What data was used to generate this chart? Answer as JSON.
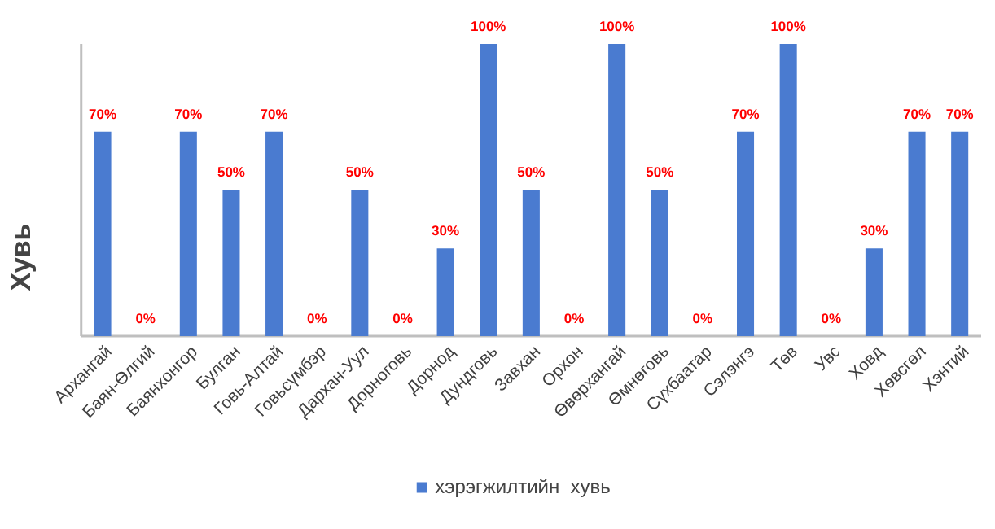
{
  "chart_data": {
    "type": "bar",
    "ylabel": "Хувь",
    "categories": [
      "Архангай",
      "Баян-Өлгий",
      "Баянхонгор",
      "Булган",
      "Говь-Алтай",
      "Говьсүмбэр",
      "Дархан-Уул",
      "Дорноговь",
      "Дорнод",
      "Дундговь",
      "Завхан",
      "Орхон",
      "Өвөрхангай",
      "Өмнөговь",
      "Сүхбаатар",
      "Сэлэнгэ",
      "Төв",
      "Увс",
      "Ховд",
      "Хөвсгөл",
      "Хэнтий"
    ],
    "series": [
      {
        "name": "хэрэгжилтийн  хувь",
        "color": "#4a7bd0",
        "values": [
          70,
          0,
          70,
          50,
          70,
          0,
          50,
          0,
          30,
          100,
          50,
          0,
          100,
          50,
          0,
          70,
          100,
          0,
          30,
          70,
          70
        ],
        "value_labels": [
          "70%",
          "0%",
          "70%",
          "50%",
          "70%",
          "0%",
          "50%",
          "0%",
          "30%",
          "100%",
          "50%",
          "0%",
          "100%",
          "50%",
          "0%",
          "70%",
          "100%",
          "0%",
          "30%",
          "70%",
          "70%"
        ]
      }
    ],
    "legend": "bottom"
  }
}
